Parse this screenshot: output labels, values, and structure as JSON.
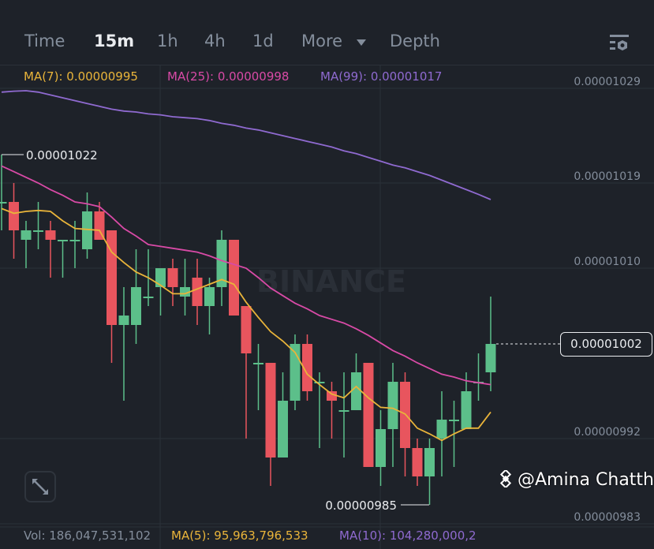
{
  "tabs": [
    {
      "label": "Time",
      "active": false
    },
    {
      "label": "15m",
      "active": true
    },
    {
      "label": "1h",
      "active": false
    },
    {
      "label": "4h",
      "active": false
    },
    {
      "label": "1d",
      "active": false
    },
    {
      "label": "More",
      "active": false
    },
    {
      "label": "Depth",
      "active": false
    }
  ],
  "settings_icon": "chart-settings-icon",
  "ma_legend": {
    "ma7": "MA(7): 0.00000995",
    "ma25": "MA(25): 0.00000998",
    "ma99": "MA(99): 0.00001017"
  },
  "volume_legend": {
    "vol": "Vol: 186,047,531,102",
    "ma5": "MA(5): 95,963,796,533",
    "ma10": "MA(10): 104,280,000,2"
  },
  "current_price": "0.00001002",
  "watermark": "BINANCE",
  "credit": "@Amina Chattha",
  "colors": {
    "background": "#1e2229",
    "up": "#5cbf8a",
    "down": "#e8555e",
    "ma7": "#e9b43a",
    "ma25": "#d84aa6",
    "ma99": "#8f6ad0",
    "grid": "#2b3139",
    "axis_text": "#848e9c"
  },
  "chart_data": {
    "type": "candlestick",
    "interval": "15m",
    "ylim": [
      9.8e-06,
      1.032e-05
    ],
    "y_ticks": [
      "0.00001029",
      "0.00001019",
      "0.00001010",
      "0.00000992",
      "0.00000983"
    ],
    "grid": true,
    "high_marker": "0.00001022",
    "low_marker": "0.00000985",
    "ohlc": [
      [
        1.017e-05,
        1.022e-05,
        1.014e-05,
        1.017e-05
      ],
      [
        1.017e-05,
        1.019e-05,
        1.011e-05,
        1.014e-05
      ],
      [
        1.013e-05,
        1.015e-05,
        1.01e-05,
        1.014e-05
      ],
      [
        1.014e-05,
        1.017e-05,
        1.012e-05,
        1.014e-05
      ],
      [
        1.014e-05,
        1.015e-05,
        1.009e-05,
        1.013e-05
      ],
      [
        1.013e-05,
        1.013e-05,
        1.009e-05,
        1.013e-05
      ],
      [
        1.013e-05,
        1.015e-05,
        1.01e-05,
        1.013e-05
      ],
      [
        1.012e-05,
        1.018e-05,
        1.011e-05,
        1.016e-05
      ],
      [
        1.016e-05,
        1.017e-05,
        1.013e-05,
        1.013e-05
      ],
      [
        1.014e-05,
        1.014e-05,
        1e-05,
        1.004e-05
      ],
      [
        1.004e-05,
        1.008e-05,
        9.96e-06,
        1.005e-05
      ],
      [
        1.004e-05,
        1.012e-05,
        1.002e-05,
        1.008e-05
      ],
      [
        1.007e-05,
        1.012e-05,
        1.006e-05,
        1.007e-05
      ],
      [
        1.008e-05,
        1.01e-05,
        1.005e-05,
        1.01e-05
      ],
      [
        1.01e-05,
        1.011e-05,
        1.006e-05,
        1.008e-05
      ],
      [
        1.007e-05,
        1.011e-05,
        1.005e-05,
        1.008e-05
      ],
      [
        1.009e-05,
        1.011e-05,
        1.004e-05,
        1.006e-05
      ],
      [
        1.006e-05,
        1.009e-05,
        1.003e-05,
        1.008e-05
      ],
      [
        1.008e-05,
        1.014e-05,
        1.006e-05,
        1.013e-05
      ],
      [
        1.013e-05,
        1.013e-05,
        1.005e-05,
        1.005e-05
      ],
      [
        1.006e-05,
        1.006e-05,
        9.92e-06,
        1.001e-05
      ],
      [
        1e-05,
        1.002e-05,
        9.95e-06,
        1e-05
      ],
      [
        1e-05,
        1e-05,
        9.87e-06,
        9.9e-06
      ],
      [
        9.9e-06,
        9.99e-06,
        9.9e-06,
        9.96e-06
      ],
      [
        9.96e-06,
        1.003e-05,
        9.95e-06,
        1.002e-05
      ],
      [
        1.002e-05,
        1.003e-05,
        9.96e-06,
        9.97e-06
      ],
      [
        9.98e-06,
        9.99e-06,
        9.91e-06,
        9.98e-06
      ],
      [
        9.97e-06,
        9.98e-06,
        9.92e-06,
        9.96e-06
      ],
      [
        9.95e-06,
        9.99e-06,
        9.9e-06,
        9.95e-06
      ],
      [
        9.95e-06,
        1.001e-05,
        9.95e-06,
        9.99e-06
      ],
      [
        1e-05,
        1e-05,
        9.89e-06,
        9.89e-06
      ],
      [
        9.89e-06,
        9.95e-06,
        9.87e-06,
        9.93e-06
      ],
      [
        9.93e-06,
        1e-05,
        9.89e-06,
        9.98e-06
      ],
      [
        9.98e-06,
        9.99e-06,
        9.88e-06,
        9.91e-06
      ],
      [
        9.91e-06,
        9.92e-06,
        9.87e-06,
        9.88e-06
      ],
      [
        9.88e-06,
        9.92e-06,
        9.85e-06,
        9.91e-06
      ],
      [
        9.92e-06,
        9.97e-06,
        9.88e-06,
        9.94e-06
      ],
      [
        9.94e-06,
        9.96e-06,
        9.89e-06,
        9.94e-06
      ],
      [
        9.93e-06,
        9.99e-06,
        9.93e-06,
        9.97e-06
      ],
      [
        9.98e-06,
        1.001e-05,
        9.96e-06,
        9.98e-06
      ],
      [
        9.99e-06,
        1.007e-05,
        9.97e-06,
        1.002e-05
      ]
    ],
    "ma7": [
      1.0163e-05,
      1.0158e-05,
      1.016e-05,
      1.0161e-05,
      1.016e-05,
      1.015e-05,
      1.0142e-05,
      1.0141e-05,
      1.014e-05,
      1.0117e-05,
      1.0106e-05,
      1.0096e-05,
      1.009e-05,
      1.0082e-05,
      1.0073e-05,
      1.0073e-05,
      1.0078e-05,
      1.0083e-05,
      1.0088e-05,
      1.0083e-05,
      1.0064e-05,
      1.0048e-05,
      1.0033e-05,
      1.0023e-05,
      1.0011e-05,
      9.988e-06,
      9.977e-06,
      9.967e-06,
      9.963e-06,
      9.975e-06,
      9.963e-06,
      9.953e-06,
      9.952e-06,
      9.946e-06,
      9.931e-06,
      9.925e-06,
      9.918e-06,
      9.925e-06,
      9.931e-06,
      9.931e-06,
      9.948e-06
    ],
    "ma25": [
      1.0208e-05,
      1.0202e-05,
      1.0196e-05,
      1.019e-05,
      1.0183e-05,
      1.0177e-05,
      1.017e-05,
      1.0168e-05,
      1.0165e-05,
      1.0154e-05,
      1.0142e-05,
      1.0134e-05,
      1.0125e-05,
      1.0123e-05,
      1.0121e-05,
      1.0119e-05,
      1.0117e-05,
      1.0113e-05,
      1.0108e-05,
      1.0104e-05,
      1.01e-05,
      1.009e-05,
      1.0079e-05,
      1.0071e-05,
      1.0063e-05,
      1.0057e-05,
      1.005e-05,
      1.0046e-05,
      1.0042e-05,
      1.0036e-05,
      1.0029e-05,
      1.0021e-05,
      1.0013e-05,
      1.0007e-05,
      1e-05,
      9.994e-06,
      9.988e-06,
      9.985e-06,
      9.981e-06,
      9.979e-06,
      9.977e-06
    ],
    "ma99": [
      1.0286e-05,
      1.0287e-05,
      1.02875e-05,
      1.0286e-05,
      1.0283e-05,
      1.028e-05,
      1.0277e-05,
      1.0274e-05,
      1.0271e-05,
      1.0268e-05,
      1.0266e-05,
      1.0265e-05,
      1.0263e-05,
      1.0262e-05,
      1.026e-05,
      1.0259e-05,
      1.0258e-05,
      1.0256e-05,
      1.0253e-05,
      1.0251e-05,
      1.0248e-05,
      1.0246e-05,
      1.0243e-05,
      1.024e-05,
      1.0237e-05,
      1.0234e-05,
      1.0231e-05,
      1.0228e-05,
      1.0224e-05,
      1.0221e-05,
      1.0217e-05,
      1.0213e-05,
      1.0209e-05,
      1.0206e-05,
      1.0202e-05,
      1.0198e-05,
      1.0193e-05,
      1.0188e-05,
      1.0183e-05,
      1.0178e-05,
      1.01725e-05
    ]
  }
}
